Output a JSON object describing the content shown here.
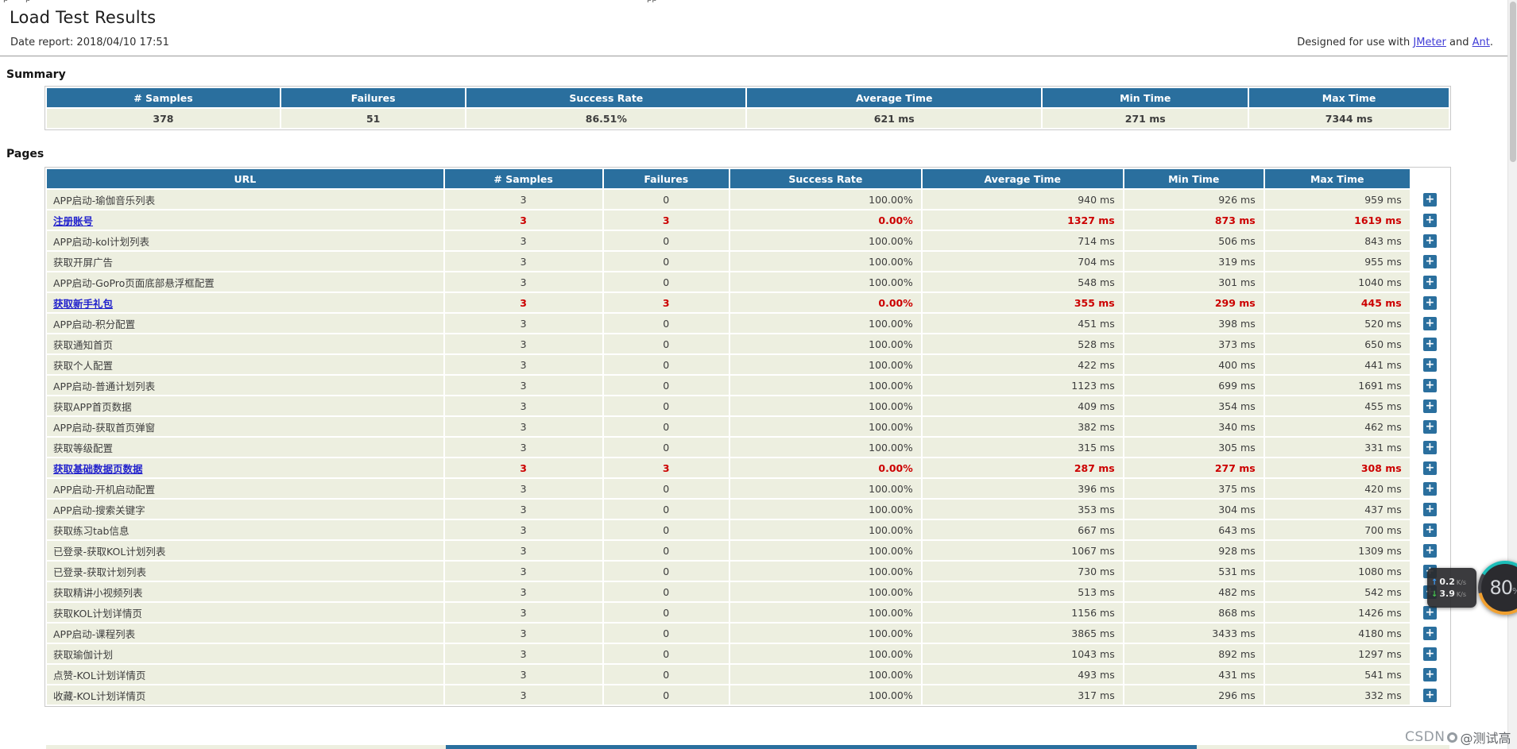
{
  "page": {
    "title": "Load Test Results",
    "date_report": "Date report: 2018/04/10 17:51",
    "designed_prefix": "Designed for use with ",
    "jmeter_link": "JMeter",
    "designed_mid": " and ",
    "ant_link": "Ant",
    "designed_suffix": "."
  },
  "top_fragments": [
    "p",
    "p",
    "pp"
  ],
  "summary": {
    "heading": "Summary",
    "columns": [
      "# Samples",
      "Failures",
      "Success Rate",
      "Average Time",
      "Min Time",
      "Max Time"
    ],
    "values": [
      "378",
      "51",
      "86.51%",
      "621 ms",
      "271 ms",
      "7344 ms"
    ]
  },
  "pages": {
    "heading": "Pages",
    "columns": [
      "URL",
      "# Samples",
      "Failures",
      "Success Rate",
      "Average Time",
      "Min Time",
      "Max Time"
    ],
    "expand_label": "+",
    "rows": [
      {
        "url": "APP启动-瑜伽音乐列表",
        "samples": "3",
        "failures": "0",
        "success_rate": "100.00%",
        "avg": "940 ms",
        "min": "926 ms",
        "max": "959 ms",
        "failed": false
      },
      {
        "url": "注册账号",
        "samples": "3",
        "failures": "3",
        "success_rate": "0.00%",
        "avg": "1327 ms",
        "min": "873 ms",
        "max": "1619 ms",
        "failed": true
      },
      {
        "url": "APP启动-kol计划列表",
        "samples": "3",
        "failures": "0",
        "success_rate": "100.00%",
        "avg": "714 ms",
        "min": "506 ms",
        "max": "843 ms",
        "failed": false
      },
      {
        "url": "获取开屏广告",
        "samples": "3",
        "failures": "0",
        "success_rate": "100.00%",
        "avg": "704 ms",
        "min": "319 ms",
        "max": "955 ms",
        "failed": false
      },
      {
        "url": "APP启动-GoPro页面底部悬浮框配置",
        "samples": "3",
        "failures": "0",
        "success_rate": "100.00%",
        "avg": "548 ms",
        "min": "301 ms",
        "max": "1040 ms",
        "failed": false
      },
      {
        "url": "获取新手礼包",
        "samples": "3",
        "failures": "3",
        "success_rate": "0.00%",
        "avg": "355 ms",
        "min": "299 ms",
        "max": "445 ms",
        "failed": true
      },
      {
        "url": "APP启动-积分配置",
        "samples": "3",
        "failures": "0",
        "success_rate": "100.00%",
        "avg": "451 ms",
        "min": "398 ms",
        "max": "520 ms",
        "failed": false
      },
      {
        "url": "获取通知首页",
        "samples": "3",
        "failures": "0",
        "success_rate": "100.00%",
        "avg": "528 ms",
        "min": "373 ms",
        "max": "650 ms",
        "failed": false
      },
      {
        "url": "获取个人配置",
        "samples": "3",
        "failures": "0",
        "success_rate": "100.00%",
        "avg": "422 ms",
        "min": "400 ms",
        "max": "441 ms",
        "failed": false
      },
      {
        "url": "APP启动-普通计划列表",
        "samples": "3",
        "failures": "0",
        "success_rate": "100.00%",
        "avg": "1123 ms",
        "min": "699 ms",
        "max": "1691 ms",
        "failed": false
      },
      {
        "url": "获取APP首页数据",
        "samples": "3",
        "failures": "0",
        "success_rate": "100.00%",
        "avg": "409 ms",
        "min": "354 ms",
        "max": "455 ms",
        "failed": false
      },
      {
        "url": "APP启动-获取首页弹窗",
        "samples": "3",
        "failures": "0",
        "success_rate": "100.00%",
        "avg": "382 ms",
        "min": "340 ms",
        "max": "462 ms",
        "failed": false
      },
      {
        "url": "获取等级配置",
        "samples": "3",
        "failures": "0",
        "success_rate": "100.00%",
        "avg": "315 ms",
        "min": "305 ms",
        "max": "331 ms",
        "failed": false
      },
      {
        "url": "获取基础数据页数据",
        "samples": "3",
        "failures": "3",
        "success_rate": "0.00%",
        "avg": "287 ms",
        "min": "277 ms",
        "max": "308 ms",
        "failed": true
      },
      {
        "url": "APP启动-开机启动配置",
        "samples": "3",
        "failures": "0",
        "success_rate": "100.00%",
        "avg": "396 ms",
        "min": "375 ms",
        "max": "420 ms",
        "failed": false
      },
      {
        "url": "APP启动-搜索关键字",
        "samples": "3",
        "failures": "0",
        "success_rate": "100.00%",
        "avg": "353 ms",
        "min": "304 ms",
        "max": "437 ms",
        "failed": false
      },
      {
        "url": "获取练习tab信息",
        "samples": "3",
        "failures": "0",
        "success_rate": "100.00%",
        "avg": "667 ms",
        "min": "643 ms",
        "max": "700 ms",
        "failed": false
      },
      {
        "url": "已登录-获取KOL计划列表",
        "samples": "3",
        "failures": "0",
        "success_rate": "100.00%",
        "avg": "1067 ms",
        "min": "928 ms",
        "max": "1309 ms",
        "failed": false
      },
      {
        "url": "已登录-获取计划列表",
        "samples": "3",
        "failures": "0",
        "success_rate": "100.00%",
        "avg": "730 ms",
        "min": "531 ms",
        "max": "1080 ms",
        "failed": false
      },
      {
        "url": "获取精讲小视频列表",
        "samples": "3",
        "failures": "0",
        "success_rate": "100.00%",
        "avg": "513 ms",
        "min": "482 ms",
        "max": "542 ms",
        "failed": false
      },
      {
        "url": "获取KOL计划详情页",
        "samples": "3",
        "failures": "0",
        "success_rate": "100.00%",
        "avg": "1156 ms",
        "min": "868 ms",
        "max": "1426 ms",
        "failed": false
      },
      {
        "url": "APP启动-课程列表",
        "samples": "3",
        "failures": "0",
        "success_rate": "100.00%",
        "avg": "3865 ms",
        "min": "3433 ms",
        "max": "4180 ms",
        "failed": false
      },
      {
        "url": "获取瑜伽计划",
        "samples": "3",
        "failures": "0",
        "success_rate": "100.00%",
        "avg": "1043 ms",
        "min": "892 ms",
        "max": "1297 ms",
        "failed": false
      },
      {
        "url": "点赞-KOL计划详情页",
        "samples": "3",
        "failures": "0",
        "success_rate": "100.00%",
        "avg": "493 ms",
        "min": "431 ms",
        "max": "541 ms",
        "failed": false
      },
      {
        "url": "收藏-KOL计划详情页",
        "samples": "3",
        "failures": "0",
        "success_rate": "100.00%",
        "avg": "317 ms",
        "min": "296 ms",
        "max": "332 ms",
        "failed": false
      }
    ]
  },
  "net_widget": {
    "up_arrow": "↑",
    "up_value": "0.2",
    "up_unit": "K/s",
    "down_arrow": "↓",
    "down_value": "3.9",
    "down_unit": "K/s",
    "percent": "80",
    "percent_unit": "%"
  },
  "watermark": {
    "brand": "CSDN",
    "handle": "@测试高"
  },
  "colors": {
    "header_blue": "#2a6f9e",
    "row_beige": "#edefe0",
    "failure_red": "#cc0000",
    "fail_link_blue": "#2222cc",
    "external_link_blue": "#3f3bd6"
  }
}
